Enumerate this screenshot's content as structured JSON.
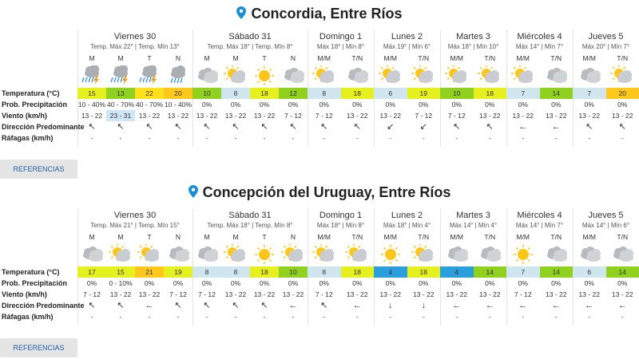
{
  "row_labels": [
    "Temperatura (°C)",
    "Prob. Precipitación",
    "Viento (km/h)",
    "Dirección Predominante",
    "Ráfagas (km/h)"
  ],
  "button": "REFERENCIAS",
  "locations": [
    {
      "title": "Concordia, Entre Ríos",
      "days": [
        {
          "name": "Viernes 30",
          "range": "Temp. Máx 22° | Temp. Mín 13°",
          "periods": [
            "M",
            "M",
            "T",
            "N"
          ]
        },
        {
          "name": "Sábado 31",
          "range": "Temp. Máx 18° | Temp. Mín 8°",
          "periods": [
            "M",
            "M",
            "T",
            "N"
          ]
        },
        {
          "name": "Domingo 1",
          "range": "Máx 18° | Mín 8°",
          "periods": [
            "M/M",
            "T/N"
          ]
        },
        {
          "name": "Lunes 2",
          "range": "Máx 19° | Mín 6°",
          "periods": [
            "M/M",
            "T/N"
          ]
        },
        {
          "name": "Martes 3",
          "range": "Máx 18° | Mín 10°",
          "periods": [
            "M/M",
            "T/N"
          ]
        },
        {
          "name": "Miércoles 4",
          "range": "Máx 14° | Mín 7°",
          "periods": [
            "M/M",
            "T/N"
          ]
        },
        {
          "name": "Jueves 5",
          "range": "Máx 20° | Mín 7°",
          "periods": [
            "M/M",
            "T/N"
          ]
        }
      ],
      "icons": [
        "storm",
        "storm",
        "storm",
        "rain",
        "cloud",
        "partly",
        "sun",
        "cloud",
        "partly",
        "cloud",
        "partly",
        "partly",
        "partly",
        "partly",
        "partly",
        "cloud",
        "cloud",
        "partly"
      ],
      "temperature": [
        15,
        13,
        22,
        20,
        10,
        8,
        18,
        12,
        8,
        18,
        6,
        19,
        10,
        18,
        7,
        14,
        7,
        20
      ],
      "temperature_colors": [
        "#e6f01e",
        "#8fd11e",
        "#ffe01a",
        "#ffc81a",
        "#8fd11e",
        "#cfe6ee",
        "#e6f01e",
        "#8fd11e",
        "#cfe6ee",
        "#e6f01e",
        "#cfe6ee",
        "#e6f01e",
        "#8fd11e",
        "#e6f01e",
        "#cfe6ee",
        "#8fd11e",
        "#cfe6ee",
        "#ffc81a"
      ],
      "precipitation": [
        "10 - 40%",
        "40 - 70%",
        "40 - 70%",
        "10 - 40%",
        "0%",
        "0%",
        "0%",
        "0%",
        "0%",
        "0%",
        "0%",
        "0%",
        "0%",
        "0%",
        "0%",
        "0%",
        "0%",
        "0%"
      ],
      "wind": [
        "13 - 22",
        "23 - 31",
        "13 - 22",
        "13 - 22",
        "13 - 22",
        "13 - 22",
        "13 - 22",
        "7 - 12",
        "7 - 12",
        "13 - 22",
        "13 - 22",
        "7 - 12",
        "7 - 12",
        "13 - 22",
        "13 - 22",
        "13 - 22",
        "13 - 22",
        "13 - 22"
      ],
      "wind_highlight_index": 1,
      "direction": [
        "↖",
        "↖",
        "↖",
        "↖",
        "↖",
        "↖",
        "↖",
        "↖",
        "↖",
        "↖",
        "↙",
        "↙",
        "↖",
        "↖",
        "←",
        "←",
        "↖",
        "↖"
      ],
      "gusts": [
        "-",
        "-",
        "-",
        "-",
        "-",
        "-",
        "-",
        "-",
        "-",
        "-",
        "-",
        "-",
        "-",
        "-",
        "-",
        "-",
        "-",
        "-"
      ]
    },
    {
      "title": "Concepción del Uruguay, Entre Ríos",
      "days": [
        {
          "name": "Viernes 30",
          "range": "Temp. Máx 21° | Temp. Mín 15°",
          "periods": [
            "M",
            "M",
            "T",
            "N"
          ]
        },
        {
          "name": "Sábado 31",
          "range": "Temp. Máx 18° | Temp. Mín 8°",
          "periods": [
            "M",
            "M",
            "T",
            "N"
          ]
        },
        {
          "name": "Domingo 1",
          "range": "Máx 18° | Mín 8°",
          "periods": [
            "M/M",
            "T/N"
          ]
        },
        {
          "name": "Lunes 2",
          "range": "Máx 18° | Mín 4°",
          "periods": [
            "M/M",
            "T/N"
          ]
        },
        {
          "name": "Martes 3",
          "range": "Máx 14° | Mín 4°",
          "periods": [
            "M/M",
            "T/N"
          ]
        },
        {
          "name": "Miércoles 4",
          "range": "Máx 14° | Mín 7°",
          "periods": [
            "M/M",
            "T/N"
          ]
        },
        {
          "name": "Jueves 5",
          "range": "Máx 14° | Mín 6°",
          "periods": [
            "M/M",
            "T/N"
          ]
        }
      ],
      "icons": [
        "cloud",
        "partly",
        "partly",
        "cloud",
        "cloud",
        "partly",
        "sun",
        "partly",
        "partly",
        "partly",
        "sun",
        "partly",
        "cloud",
        "cloud",
        "sun",
        "cloud",
        "cloud",
        "cloud"
      ],
      "temperature": [
        17,
        15,
        21,
        19,
        8,
        8,
        18,
        10,
        8,
        18,
        4,
        18,
        4,
        14,
        7,
        14,
        6,
        14
      ],
      "temperature_colors": [
        "#e6f01e",
        "#e6f01e",
        "#ffc81a",
        "#e6f01e",
        "#cfe6ee",
        "#cfe6ee",
        "#e6f01e",
        "#8fd11e",
        "#cfe6ee",
        "#e6f01e",
        "#2b9fdc",
        "#e6f01e",
        "#2b9fdc",
        "#8fd11e",
        "#cfe6ee",
        "#8fd11e",
        "#cfe6ee",
        "#8fd11e"
      ],
      "precipitation": [
        "0%",
        "0 - 10%",
        "0%",
        "0%",
        "0%",
        "0%",
        "0%",
        "0%",
        "0%",
        "0%",
        "0%",
        "0%",
        "0%",
        "0%",
        "0%",
        "0%",
        "0%",
        "0%"
      ],
      "wind": [
        "7 - 12",
        "13 - 22",
        "13 - 22",
        "7 - 12",
        "7 - 12",
        "13 - 22",
        "13 - 22",
        "13 - 22",
        "7 - 12",
        "13 - 22",
        "13 - 22",
        "13 - 22",
        "13 - 22",
        "13 - 22",
        "7 - 12",
        "13 - 22",
        "13 - 22",
        "13 - 22"
      ],
      "direction": [
        "↖",
        "↖",
        "←",
        "↖",
        "↖",
        "↖",
        "↖",
        "←",
        "↖",
        "←",
        "↓",
        "↓",
        "←",
        "←",
        "←",
        "←",
        "←",
        "←"
      ],
      "gusts": [
        "-",
        "-",
        "-",
        "-",
        "-",
        "-",
        "-",
        "-",
        "-",
        "-",
        "-",
        "-",
        "-",
        "-",
        "-",
        "-",
        "-",
        "-"
      ]
    }
  ]
}
